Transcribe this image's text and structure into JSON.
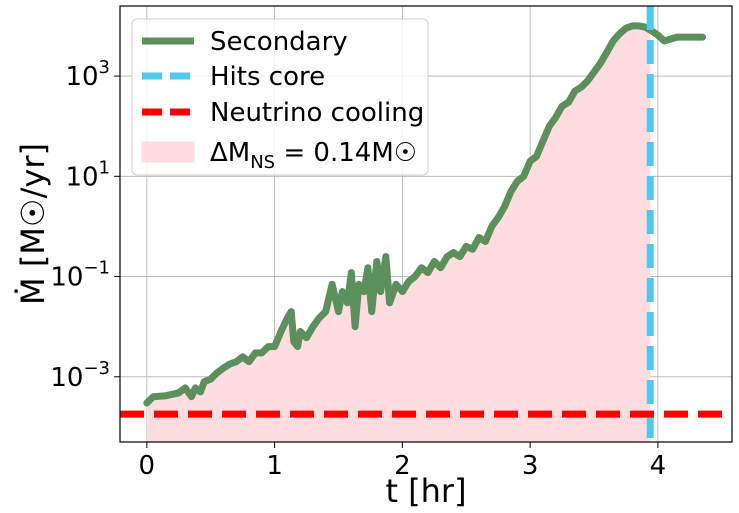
{
  "chart_data": {
    "type": "line",
    "xlabel": "t [hr]",
    "ylabel": "Ṁ [M☉/yr]",
    "x_ticks": [
      {
        "value": 0,
        "label": "0"
      },
      {
        "value": 1,
        "label": "1"
      },
      {
        "value": 2,
        "label": "2"
      },
      {
        "value": 3,
        "label": "3"
      },
      {
        "value": 4,
        "label": "4"
      }
    ],
    "y_scale": "log",
    "y_ticks": [
      {
        "value": 0.001,
        "base": "10",
        "exp": "−3"
      },
      {
        "value": 0.1,
        "base": "10",
        "exp": "−1"
      },
      {
        "value": 10,
        "base": "10",
        "exp": "1"
      },
      {
        "value": 1000,
        "base": "10",
        "exp": "3"
      }
    ],
    "xlim": [
      -0.21,
      4.58
    ],
    "ylim": [
      5e-05,
      25000
    ],
    "grid": true,
    "legend_position": "top-left",
    "legend": [
      {
        "label": "Secondary",
        "style": "line",
        "color": "#5b8f5b"
      },
      {
        "label": "Hits core",
        "style": "dashed",
        "color": "#4ec9f0"
      },
      {
        "label": "Neutrino cooling",
        "style": "dashed",
        "color": "#ff0000"
      },
      {
        "label": "ΔM_NS = 0.14M☉",
        "style": "fill",
        "color": "#ffdce0"
      }
    ],
    "series": [
      {
        "name": "Secondary",
        "color": "#5b8f5b",
        "x": [
          0.0,
          0.05,
          0.15,
          0.25,
          0.3,
          0.35,
          0.38,
          0.42,
          0.45,
          0.5,
          0.55,
          0.6,
          0.65,
          0.7,
          0.75,
          0.8,
          0.85,
          0.9,
          0.95,
          1.0,
          1.05,
          1.1,
          1.13,
          1.15,
          1.18,
          1.2,
          1.25,
          1.3,
          1.35,
          1.4,
          1.45,
          1.5,
          1.53,
          1.57,
          1.6,
          1.63,
          1.66,
          1.7,
          1.73,
          1.76,
          1.8,
          1.83,
          1.87,
          1.9,
          1.95,
          2.0,
          2.05,
          2.1,
          2.15,
          2.2,
          2.25,
          2.3,
          2.35,
          2.4,
          2.45,
          2.5,
          2.55,
          2.6,
          2.65,
          2.7,
          2.75,
          2.8,
          2.85,
          2.9,
          2.95,
          3.0,
          3.05,
          3.1,
          3.15,
          3.2,
          3.25,
          3.3,
          3.35,
          3.4,
          3.45,
          3.5,
          3.55,
          3.6,
          3.65,
          3.7,
          3.75,
          3.8,
          3.85,
          3.9,
          3.95,
          4.0,
          4.05,
          4.1,
          4.15,
          4.2,
          4.25,
          4.3,
          4.35
        ],
        "values": [
          0.0003,
          0.0004,
          0.00042,
          0.00048,
          0.0006,
          0.0004,
          0.0006,
          0.0005,
          0.0008,
          0.0009,
          0.0012,
          0.0015,
          0.0018,
          0.002,
          0.0025,
          0.002,
          0.003,
          0.003,
          0.004,
          0.004,
          0.008,
          0.015,
          0.02,
          0.005,
          0.004,
          0.008,
          0.006,
          0.01,
          0.015,
          0.02,
          0.07,
          0.02,
          0.05,
          0.03,
          0.12,
          0.01,
          0.07,
          0.05,
          0.15,
          0.02,
          0.2,
          0.05,
          0.25,
          0.03,
          0.07,
          0.05,
          0.08,
          0.1,
          0.15,
          0.12,
          0.2,
          0.15,
          0.25,
          0.3,
          0.25,
          0.4,
          0.35,
          0.6,
          0.5,
          1.0,
          1.5,
          2.5,
          5.0,
          8.0,
          10.0,
          20.0,
          25.0,
          50.0,
          100.0,
          150.0,
          250.0,
          300.0,
          500.0,
          600.0,
          800.0,
          1200.0,
          1800.0,
          3000.0,
          5000.0,
          7000.0,
          9000.0,
          10000.0,
          10000.0,
          9500.0,
          8000.0,
          6500.0,
          5000.0,
          5500.0,
          6000.0,
          6000.0,
          6000.0,
          6000.0,
          6000.0
        ]
      }
    ],
    "hits_core_x": 3.94,
    "neutrino_cooling_y": 0.00018,
    "fill_region": {
      "color": "#ffdce0",
      "x_end": 3.94
    }
  }
}
